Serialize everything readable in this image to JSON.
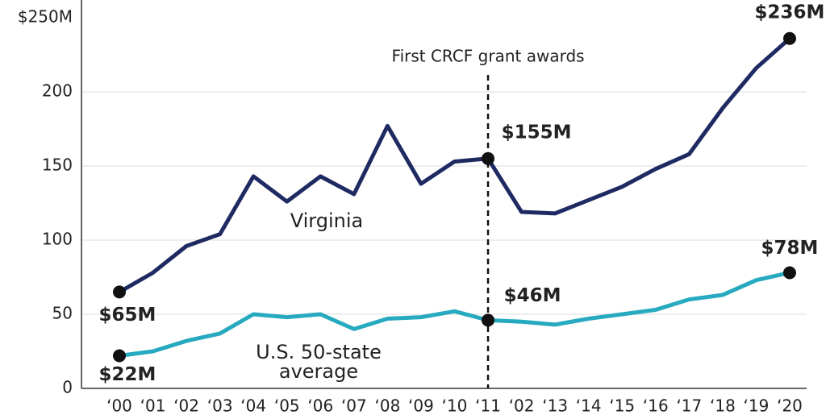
{
  "chart_data": {
    "type": "line",
    "categories": [
      "‘00",
      "‘01",
      "‘02",
      "‘03",
      "‘04",
      "‘05",
      "‘06",
      "‘07",
      "‘08",
      "‘09",
      "‘10",
      "‘11",
      "‘02",
      "‘13",
      "‘14",
      "‘15",
      "‘16",
      "‘17",
      "‘18",
      "‘19",
      "‘20"
    ],
    "series": [
      {
        "name": "Virginia",
        "color": "#1f2a63",
        "values": [
          65,
          78,
          96,
          104,
          143,
          126,
          143,
          131,
          177,
          138,
          153,
          155,
          119,
          118,
          127,
          136,
          148,
          158,
          189,
          216,
          236
        ],
        "value_labels": [
          "$65M",
          null,
          null,
          null,
          null,
          null,
          null,
          null,
          null,
          null,
          null,
          "$155M",
          null,
          null,
          null,
          null,
          null,
          null,
          null,
          null,
          "$236M"
        ]
      },
      {
        "name": "U.S. 50-state average",
        "color": "#27aabf",
        "values": [
          22,
          25,
          32,
          37,
          50,
          48,
          50,
          40,
          47,
          48,
          52,
          46,
          45,
          43,
          47,
          50,
          53,
          60,
          63,
          73,
          78
        ],
        "value_labels": [
          "$22M",
          null,
          null,
          null,
          null,
          null,
          null,
          null,
          null,
          null,
          null,
          "$46M",
          null,
          null,
          null,
          null,
          null,
          null,
          null,
          null,
          "$78M"
        ]
      }
    ],
    "ylim": [
      0,
      250
    ],
    "yticks": [
      0,
      50,
      100,
      150,
      200,
      {
        "value": 250,
        "label": "$250M"
      }
    ],
    "grid": true,
    "annotation": {
      "text": "First CRCF grant awards",
      "at": 11
    }
  }
}
